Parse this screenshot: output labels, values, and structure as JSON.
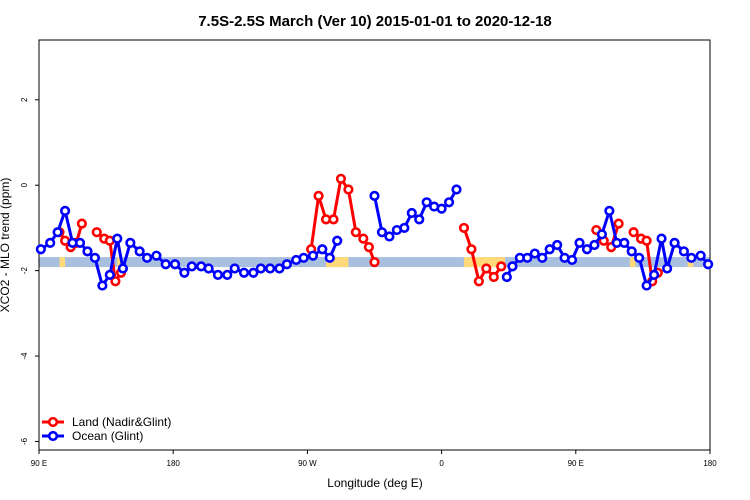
{
  "chart_data": {
    "type": "line",
    "title": "7.5S-2.5S March (Ver 10)   2015-01-01 to 2020-12-18",
    "xlabel": "Longitude (deg E)",
    "ylabel": "XCO2 - MLO trend (ppm)",
    "xlim": [
      90,
      450
    ],
    "ylim": [
      -6.2,
      3.4
    ],
    "x_ticks": [
      {
        "value": 90,
        "label": "90 E"
      },
      {
        "value": 162,
        "label": "180"
      },
      {
        "value": 234,
        "label": "90 W"
      },
      {
        "value": 306,
        "label": "0"
      },
      {
        "value": 378,
        "label": "90 E"
      },
      {
        "value": 450,
        "label": "180"
      }
    ],
    "y_ticks": [
      {
        "value": -6,
        "label": "-6"
      },
      {
        "value": -4,
        "label": "-4"
      },
      {
        "value": -2,
        "label": "-2"
      },
      {
        "value": 0,
        "label": "0"
      },
      {
        "value": 2,
        "label": "2"
      }
    ],
    "legend_position": "bottom-left",
    "band": {
      "y": -1.8,
      "ocean_color": "#a8bfe0",
      "land_color": "#ffd97a",
      "land_ranges": [
        [
          101,
          104
        ],
        [
          132,
          134
        ],
        [
          244,
          256
        ],
        [
          318,
          340
        ],
        [
          407,
          410
        ],
        [
          438,
          441
        ]
      ]
    },
    "series": [
      {
        "name": "Land (Nadir&Glint)",
        "color": "#ff0000",
        "segments": [
          [
            [
              101,
              -1.1
            ],
            [
              104,
              -1.3
            ],
            [
              107,
              -1.45
            ],
            [
              110,
              -1.35
            ],
            [
              113,
              -0.9
            ]
          ],
          [
            [
              121,
              -1.1
            ],
            [
              125,
              -1.25
            ],
            [
              128,
              -1.3
            ],
            [
              131,
              -2.25
            ],
            [
              134,
              -2.05
            ]
          ],
          [
            [
              236,
              -1.5
            ],
            [
              240,
              -0.25
            ],
            [
              244,
              -0.8
            ],
            [
              248,
              -0.8
            ],
            [
              252,
              0.15
            ],
            [
              256,
              -0.1
            ],
            [
              260,
              -1.1
            ],
            [
              264,
              -1.25
            ],
            [
              267,
              -1.45
            ],
            [
              270,
              -1.8
            ]
          ],
          [
            [
              318,
              -1.0
            ],
            [
              322,
              -1.5
            ],
            [
              326,
              -2.25
            ],
            [
              330,
              -1.95
            ],
            [
              334,
              -2.15
            ],
            [
              338,
              -1.9
            ]
          ],
          [
            [
              389,
              -1.05
            ],
            [
              393,
              -1.3
            ],
            [
              397,
              -1.45
            ],
            [
              401,
              -0.9
            ]
          ],
          [
            [
              409,
              -1.1
            ],
            [
              413,
              -1.25
            ],
            [
              416,
              -1.3
            ],
            [
              419,
              -2.25
            ],
            [
              422,
              -2.05
            ]
          ]
        ]
      },
      {
        "name": "Ocean (Glint)",
        "color": "#0000ff",
        "segments": [
          [
            [
              91,
              -1.5
            ],
            [
              96,
              -1.35
            ],
            [
              100,
              -1.1
            ],
            [
              104,
              -0.6
            ],
            [
              108,
              -1.35
            ],
            [
              112,
              -1.35
            ],
            [
              116,
              -1.55
            ],
            [
              120,
              -1.7
            ],
            [
              124,
              -2.35
            ],
            [
              128,
              -2.1
            ],
            [
              132,
              -1.25
            ],
            [
              135,
              -1.95
            ],
            [
              139,
              -1.35
            ],
            [
              144,
              -1.55
            ],
            [
              148,
              -1.7
            ],
            [
              153,
              -1.65
            ],
            [
              158,
              -1.85
            ],
            [
              163,
              -1.85
            ],
            [
              168,
              -2.05
            ],
            [
              172,
              -1.9
            ],
            [
              177,
              -1.9
            ],
            [
              181,
              -1.95
            ],
            [
              186,
              -2.1
            ],
            [
              191,
              -2.1
            ],
            [
              195,
              -1.95
            ],
            [
              200,
              -2.05
            ],
            [
              205,
              -2.05
            ],
            [
              209,
              -1.95
            ],
            [
              214,
              -1.95
            ],
            [
              219,
              -1.95
            ],
            [
              223,
              -1.85
            ],
            [
              228,
              -1.75
            ],
            [
              232,
              -1.7
            ],
            [
              237,
              -1.65
            ],
            [
              242,
              -1.5
            ],
            [
              246,
              -1.7
            ],
            [
              250,
              -1.3
            ]
          ],
          [
            [
              270,
              -0.25
            ],
            [
              274,
              -1.1
            ],
            [
              278,
              -1.2
            ],
            [
              282,
              -1.05
            ],
            [
              286,
              -1.0
            ],
            [
              290,
              -0.65
            ],
            [
              294,
              -0.8
            ],
            [
              298,
              -0.4
            ],
            [
              302,
              -0.5
            ],
            [
              306,
              -0.55
            ],
            [
              310,
              -0.4
            ],
            [
              314,
              -0.1
            ]
          ],
          [
            [
              341,
              -2.15
            ],
            [
              344,
              -1.9
            ],
            [
              348,
              -1.7
            ],
            [
              352,
              -1.7
            ],
            [
              356,
              -1.6
            ],
            [
              360,
              -1.7
            ],
            [
              364,
              -1.5
            ],
            [
              368,
              -1.4
            ],
            [
              372,
              -1.7
            ],
            [
              376,
              -1.75
            ],
            [
              380,
              -1.35
            ],
            [
              384,
              -1.5
            ],
            [
              388,
              -1.4
            ],
            [
              392,
              -1.15
            ],
            [
              396,
              -0.6
            ],
            [
              400,
              -1.35
            ],
            [
              404,
              -1.35
            ],
            [
              408,
              -1.55
            ],
            [
              412,
              -1.7
            ],
            [
              416,
              -2.35
            ],
            [
              420,
              -2.1
            ],
            [
              424,
              -1.25
            ],
            [
              427,
              -1.95
            ],
            [
              431,
              -1.35
            ],
            [
              436,
              -1.55
            ],
            [
              440,
              -1.7
            ],
            [
              445,
              -1.65
            ],
            [
              449,
              -1.85
            ]
          ]
        ]
      }
    ]
  }
}
